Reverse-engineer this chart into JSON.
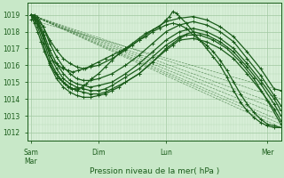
{
  "title": "",
  "xlabel": "Pression niveau de la mer( hPa )",
  "bg_color": "#c8e8c8",
  "plot_bg_color": "#d8efd8",
  "grid_major_color": "#a0c8a0",
  "grid_minor_color": "#b8d8b8",
  "line_color": "#1a5c1a",
  "ylim": [
    1011.5,
    1019.7
  ],
  "yticks": [
    1012,
    1013,
    1014,
    1015,
    1016,
    1017,
    1018,
    1019
  ],
  "xtick_labels": [
    "Sam\nMar",
    "Dim",
    "Lun",
    "Mer"
  ],
  "xtick_positions": [
    0.0,
    1.0,
    2.0,
    3.5
  ],
  "xlim": [
    -0.05,
    3.7
  ],
  "straight_lines": [
    {
      "x0": 0.0,
      "y0": 1019.0,
      "x1": 3.7,
      "y1": 1012.3
    },
    {
      "x0": 0.0,
      "y0": 1019.0,
      "x1": 3.7,
      "y1": 1012.5
    },
    {
      "x0": 0.0,
      "y0": 1019.0,
      "x1": 3.7,
      "y1": 1012.7
    },
    {
      "x0": 0.0,
      "y0": 1019.0,
      "x1": 3.7,
      "y1": 1013.0
    },
    {
      "x0": 0.0,
      "y0": 1019.0,
      "x1": 3.7,
      "y1": 1013.3
    },
    {
      "x0": 0.0,
      "y0": 1019.0,
      "x1": 3.7,
      "y1": 1013.6
    },
    {
      "x0": 0.0,
      "y0": 1019.0,
      "x1": 3.7,
      "y1": 1014.0
    },
    {
      "x0": 0.0,
      "y0": 1018.7,
      "x1": 3.7,
      "y1": 1014.5
    }
  ],
  "curves": [
    {
      "x": [
        0.0,
        0.05,
        0.1,
        0.15,
        0.2,
        0.28,
        0.35,
        0.42,
        0.5,
        0.55,
        0.6,
        0.65,
        0.7,
        0.75,
        0.82,
        0.9,
        1.0,
        1.1,
        1.2,
        1.3,
        1.4,
        1.5,
        1.6,
        1.7,
        1.8,
        1.9,
        2.0,
        2.05,
        2.1,
        2.15,
        2.2,
        2.3,
        2.4,
        2.5,
        2.6,
        2.7,
        2.8,
        2.9,
        3.0,
        3.1,
        3.2,
        3.3,
        3.4,
        3.5,
        3.6,
        3.7
      ],
      "y": [
        1019.0,
        1018.5,
        1018.0,
        1017.4,
        1016.8,
        1016.1,
        1015.6,
        1015.2,
        1014.9,
        1014.7,
        1014.6,
        1014.6,
        1014.6,
        1014.7,
        1014.9,
        1015.2,
        1015.5,
        1015.9,
        1016.3,
        1016.7,
        1017.0,
        1017.3,
        1017.6,
        1017.9,
        1018.1,
        1018.3,
        1018.7,
        1018.9,
        1019.2,
        1019.1,
        1018.9,
        1018.5,
        1018.0,
        1017.5,
        1017.0,
        1016.5,
        1016.0,
        1015.3,
        1014.5,
        1013.8,
        1013.3,
        1012.9,
        1012.6,
        1012.4,
        1012.3,
        1012.3
      ]
    },
    {
      "x": [
        0.0,
        0.05,
        0.1,
        0.18,
        0.25,
        0.32,
        0.4,
        0.48,
        0.55,
        0.62,
        0.7,
        0.8,
        0.9,
        1.0,
        1.1,
        1.2,
        1.3,
        1.4,
        1.5,
        1.6,
        1.7,
        1.8,
        1.9,
        2.0,
        2.1,
        2.2,
        2.3,
        2.4,
        2.5,
        2.6,
        2.7,
        2.8,
        2.9,
        3.0,
        3.1,
        3.2,
        3.3,
        3.4,
        3.5,
        3.6,
        3.7
      ],
      "y": [
        1019.0,
        1018.8,
        1018.5,
        1017.8,
        1017.0,
        1016.3,
        1016.0,
        1015.8,
        1015.7,
        1015.6,
        1015.7,
        1015.8,
        1016.0,
        1016.2,
        1016.4,
        1016.6,
        1016.8,
        1017.0,
        1017.2,
        1017.5,
        1017.7,
        1018.0,
        1018.2,
        1018.4,
        1018.5,
        1018.4,
        1018.2,
        1017.8,
        1017.5,
        1017.2,
        1016.8,
        1016.3,
        1015.7,
        1015.0,
        1014.3,
        1013.7,
        1013.2,
        1012.8,
        1012.5,
        1012.4,
        1012.3
      ]
    },
    {
      "x": [
        0.0,
        0.05,
        0.1,
        0.18,
        0.28,
        0.38,
        0.48,
        0.58,
        0.68,
        0.78,
        0.88,
        1.0,
        1.1,
        1.2,
        1.3,
        1.4,
        1.6,
        1.8,
        2.0,
        2.1,
        2.2,
        2.3,
        2.5,
        2.7,
        2.9,
        3.1,
        3.3,
        3.5,
        3.7
      ],
      "y": [
        1019.0,
        1018.7,
        1018.3,
        1017.3,
        1016.0,
        1015.2,
        1014.7,
        1014.4,
        1014.2,
        1014.1,
        1014.1,
        1014.2,
        1014.3,
        1014.5,
        1014.7,
        1015.0,
        1015.5,
        1016.2,
        1017.0,
        1017.3,
        1017.6,
        1017.8,
        1017.8,
        1017.5,
        1017.0,
        1016.2,
        1015.2,
        1013.9,
        1012.5
      ]
    },
    {
      "x": [
        0.0,
        0.05,
        0.1,
        0.18,
        0.28,
        0.38,
        0.48,
        0.58,
        0.68,
        0.78,
        0.88,
        1.0,
        1.1,
        1.2,
        1.4,
        1.6,
        1.8,
        2.0,
        2.1,
        2.2,
        2.4,
        2.6,
        2.8,
        3.0,
        3.2,
        3.4,
        3.6,
        3.7
      ],
      "y": [
        1019.0,
        1018.8,
        1018.5,
        1017.6,
        1016.3,
        1015.5,
        1015.0,
        1014.7,
        1014.5,
        1014.4,
        1014.3,
        1014.3,
        1014.4,
        1014.6,
        1015.0,
        1015.5,
        1016.2,
        1016.9,
        1017.2,
        1017.5,
        1017.6,
        1017.4,
        1017.0,
        1016.4,
        1015.5,
        1014.5,
        1013.4,
        1012.7
      ]
    },
    {
      "x": [
        0.0,
        0.05,
        0.1,
        0.18,
        0.28,
        0.38,
        0.48,
        0.58,
        0.68,
        0.78,
        0.88,
        1.0,
        1.1,
        1.2,
        1.4,
        1.6,
        1.8,
        2.0,
        2.2,
        2.4,
        2.6,
        2.8,
        3.0,
        3.2,
        3.4,
        3.6,
        3.7
      ],
      "y": [
        1019.0,
        1018.9,
        1018.6,
        1017.8,
        1016.6,
        1015.8,
        1015.2,
        1014.9,
        1014.7,
        1014.6,
        1014.5,
        1014.5,
        1014.6,
        1014.8,
        1015.3,
        1015.8,
        1016.5,
        1017.2,
        1017.7,
        1018.0,
        1017.8,
        1017.4,
        1016.8,
        1015.9,
        1014.9,
        1013.7,
        1013.0
      ]
    },
    {
      "x": [
        0.0,
        0.05,
        0.1,
        0.18,
        0.28,
        0.38,
        0.48,
        0.58,
        0.68,
        0.78,
        0.88,
        1.0,
        1.2,
        1.4,
        1.6,
        1.8,
        2.0,
        2.2,
        2.4,
        2.6,
        2.8,
        3.0,
        3.2,
        3.4,
        3.6,
        3.7
      ],
      "y": [
        1019.0,
        1018.9,
        1018.7,
        1018.0,
        1016.9,
        1016.1,
        1015.5,
        1015.1,
        1014.9,
        1014.8,
        1014.7,
        1014.8,
        1015.0,
        1015.5,
        1016.1,
        1016.8,
        1017.5,
        1018.0,
        1018.2,
        1018.0,
        1017.6,
        1017.0,
        1016.1,
        1015.1,
        1014.0,
        1013.3
      ]
    },
    {
      "x": [
        0.0,
        0.05,
        0.1,
        0.18,
        0.28,
        0.38,
        0.48,
        0.58,
        0.68,
        0.78,
        0.88,
        1.0,
        1.2,
        1.4,
        1.6,
        1.8,
        2.0,
        2.2,
        2.4,
        2.6,
        2.8,
        3.0,
        3.2,
        3.4,
        3.6,
        3.7
      ],
      "y": [
        1019.0,
        1019.0,
        1018.9,
        1018.3,
        1017.3,
        1016.5,
        1015.9,
        1015.5,
        1015.2,
        1015.1,
        1015.1,
        1015.2,
        1015.5,
        1016.0,
        1016.6,
        1017.3,
        1018.0,
        1018.4,
        1018.6,
        1018.4,
        1018.0,
        1017.4,
        1016.4,
        1015.4,
        1014.2,
        1013.6
      ]
    },
    {
      "x": [
        0.0,
        0.05,
        0.1,
        0.18,
        0.28,
        0.38,
        0.48,
        0.58,
        0.68,
        0.78,
        0.88,
        1.0,
        1.2,
        1.4,
        1.6,
        1.8,
        2.0,
        2.2,
        2.4,
        2.6,
        2.8,
        3.0,
        3.2,
        3.4,
        3.6,
        3.7
      ],
      "y": [
        1018.7,
        1018.7,
        1018.7,
        1018.3,
        1017.5,
        1016.9,
        1016.4,
        1016.1,
        1015.9,
        1015.8,
        1015.9,
        1016.0,
        1016.4,
        1016.9,
        1017.5,
        1018.1,
        1018.6,
        1018.8,
        1018.9,
        1018.7,
        1018.3,
        1017.7,
        1016.8,
        1015.8,
        1014.6,
        1014.5
      ]
    }
  ]
}
